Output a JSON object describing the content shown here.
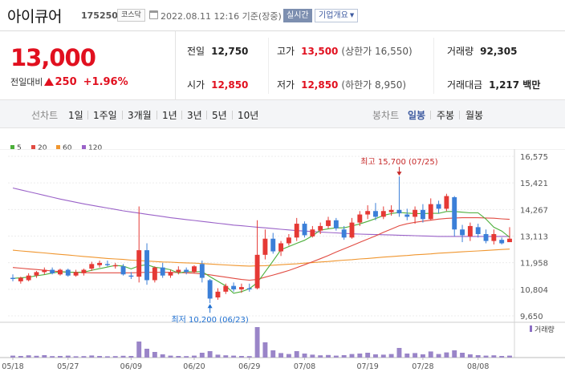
{
  "header": {
    "stock_name": "아이큐어",
    "stock_code": "175250",
    "market": "코스닥",
    "datetime": "2022.08.11 12:16 기준(장중)",
    "realtime_label": "실시간",
    "company_label": "기업개요",
    "calendar_icon": "calendar-icon",
    "caret_icon": "caret-down-icon"
  },
  "quote": {
    "price": "13,000",
    "change_label": "전일대비",
    "change": "250",
    "change_pct": "+1.96%",
    "up_color": "#e1101f",
    "prev_close_label": "전일",
    "prev_close": "12,750",
    "high_label": "고가",
    "high": "13,500",
    "upper_limit": "(상한가 16,550)",
    "volume_label": "거래량",
    "volume": "92,305",
    "open_label": "시가",
    "open": "12,850",
    "low_label": "저가",
    "low": "12,850",
    "lower_limit": "(하한가 8,950)",
    "amount_label": "거래대금",
    "amount": "1,217 백만"
  },
  "period": {
    "chart_label": "선차트",
    "chart_periods": [
      "1일",
      "1주일",
      "3개월",
      "1년",
      "3년",
      "5년",
      "10년"
    ],
    "candle_label": "봉차트",
    "candle_periods": [
      "일봉",
      "주봉",
      "월봉"
    ],
    "active_candle": "일봉"
  },
  "chart_data": {
    "type": "candlestick",
    "legend": [
      {
        "name": "5",
        "color": "#4caf3a"
      },
      {
        "name": "20",
        "color": "#e14b42"
      },
      {
        "name": "60",
        "color": "#f0962f"
      },
      {
        "name": "120",
        "color": "#9a62c8"
      }
    ],
    "up_color": "#e53935",
    "down_color": "#3b7fd8",
    "y_ticks": [
      "16,575",
      "15,421",
      "14,267",
      "13,113",
      "11,958",
      "10,804",
      "9,650"
    ],
    "ylim": [
      9650,
      16575
    ],
    "x_labels": [
      "05/18",
      "05/27",
      "06/09",
      "06/20",
      "06/29",
      "07/08",
      "07/19",
      "07/28",
      "08/08"
    ],
    "x_label_idx": [
      0,
      7,
      15,
      23,
      30,
      37,
      45,
      52,
      59
    ],
    "high_annotation": {
      "label": "최고 15,700 (07/25)",
      "index": 49,
      "value": 15700
    },
    "low_annotation": {
      "label": "최저 10,200 (06/23)",
      "index": 25,
      "value": 10200
    },
    "volume_label": "거래량",
    "candles": [
      {
        "o": 11300,
        "h": 11450,
        "l": 11150,
        "c": 11250,
        "v": 12
      },
      {
        "o": 11150,
        "h": 11350,
        "l": 11050,
        "c": 11300,
        "v": 10
      },
      {
        "o": 11200,
        "h": 11500,
        "l": 11150,
        "c": 11400,
        "v": 14
      },
      {
        "o": 11400,
        "h": 11600,
        "l": 11300,
        "c": 11550,
        "v": 11
      },
      {
        "o": 11550,
        "h": 11750,
        "l": 11450,
        "c": 11650,
        "v": 15
      },
      {
        "o": 11650,
        "h": 11750,
        "l": 11450,
        "c": 11500,
        "v": 9
      },
      {
        "o": 11450,
        "h": 11700,
        "l": 11400,
        "c": 11650,
        "v": 10
      },
      {
        "o": 11650,
        "h": 11700,
        "l": 11350,
        "c": 11400,
        "v": 12
      },
      {
        "o": 11400,
        "h": 11650,
        "l": 11350,
        "c": 11550,
        "v": 8
      },
      {
        "o": 11500,
        "h": 11700,
        "l": 11400,
        "c": 11650,
        "v": 9
      },
      {
        "o": 11700,
        "h": 12000,
        "l": 11600,
        "c": 11900,
        "v": 13
      },
      {
        "o": 11850,
        "h": 12050,
        "l": 11750,
        "c": 11950,
        "v": 10
      },
      {
        "o": 11900,
        "h": 12050,
        "l": 11800,
        "c": 11850,
        "v": 8
      },
      {
        "o": 11800,
        "h": 11950,
        "l": 11700,
        "c": 11850,
        "v": 9
      },
      {
        "o": 11800,
        "h": 11900,
        "l": 11400,
        "c": 11450,
        "v": 11
      },
      {
        "o": 11400,
        "h": 11550,
        "l": 11250,
        "c": 11350,
        "v": 10
      },
      {
        "o": 11350,
        "h": 14400,
        "l": 11100,
        "c": 12500,
        "v": 100
      },
      {
        "o": 12500,
        "h": 12800,
        "l": 11000,
        "c": 11200,
        "v": 55
      },
      {
        "o": 11200,
        "h": 11800,
        "l": 11100,
        "c": 11750,
        "v": 35
      },
      {
        "o": 11750,
        "h": 11950,
        "l": 11300,
        "c": 11400,
        "v": 20
      },
      {
        "o": 11400,
        "h": 11650,
        "l": 11300,
        "c": 11550,
        "v": 12
      },
      {
        "o": 11550,
        "h": 11800,
        "l": 11450,
        "c": 11650,
        "v": 10
      },
      {
        "o": 11650,
        "h": 11750,
        "l": 11450,
        "c": 11550,
        "v": 9
      },
      {
        "o": 11550,
        "h": 11850,
        "l": 11500,
        "c": 11800,
        "v": 12
      },
      {
        "o": 11900,
        "h": 12050,
        "l": 11100,
        "c": 11300,
        "v": 30
      },
      {
        "o": 11200,
        "h": 11250,
        "l": 10200,
        "c": 10400,
        "v": 40
      },
      {
        "o": 10450,
        "h": 10850,
        "l": 10350,
        "c": 10700,
        "v": 18
      },
      {
        "o": 10700,
        "h": 11050,
        "l": 10600,
        "c": 10950,
        "v": 14
      },
      {
        "o": 10950,
        "h": 11100,
        "l": 10700,
        "c": 10800,
        "v": 12
      },
      {
        "o": 10800,
        "h": 11050,
        "l": 10650,
        "c": 10900,
        "v": 10
      },
      {
        "o": 10850,
        "h": 11050,
        "l": 10700,
        "c": 10800,
        "v": 9
      },
      {
        "o": 10850,
        "h": 13800,
        "l": 10800,
        "c": 12300,
        "v": 190
      },
      {
        "o": 12300,
        "h": 13400,
        "l": 12100,
        "c": 13000,
        "v": 95
      },
      {
        "o": 13000,
        "h": 13250,
        "l": 12350,
        "c": 12450,
        "v": 45
      },
      {
        "o": 12450,
        "h": 12900,
        "l": 12250,
        "c": 12800,
        "v": 28
      },
      {
        "o": 12800,
        "h": 13200,
        "l": 12700,
        "c": 13050,
        "v": 22
      },
      {
        "o": 13050,
        "h": 13900,
        "l": 12900,
        "c": 13650,
        "v": 40
      },
      {
        "o": 13650,
        "h": 13750,
        "l": 13050,
        "c": 13150,
        "v": 25
      },
      {
        "o": 13100,
        "h": 13550,
        "l": 13050,
        "c": 13400,
        "v": 18
      },
      {
        "o": 13350,
        "h": 13700,
        "l": 13200,
        "c": 13550,
        "v": 14
      },
      {
        "o": 13550,
        "h": 13950,
        "l": 13450,
        "c": 13800,
        "v": 16
      },
      {
        "o": 13800,
        "h": 13900,
        "l": 13350,
        "c": 13450,
        "v": 12
      },
      {
        "o": 13400,
        "h": 13550,
        "l": 12950,
        "c": 13050,
        "v": 15
      },
      {
        "o": 13050,
        "h": 13900,
        "l": 13000,
        "c": 13700,
        "v": 22
      },
      {
        "o": 13700,
        "h": 14200,
        "l": 13550,
        "c": 14050,
        "v": 25
      },
      {
        "o": 14050,
        "h": 14450,
        "l": 13850,
        "c": 14200,
        "v": 30
      },
      {
        "o": 14200,
        "h": 14550,
        "l": 13800,
        "c": 13950,
        "v": 20
      },
      {
        "o": 13950,
        "h": 14400,
        "l": 13850,
        "c": 14200,
        "v": 18
      },
      {
        "o": 14150,
        "h": 14450,
        "l": 14000,
        "c": 14250,
        "v": 22
      },
      {
        "o": 14250,
        "h": 15700,
        "l": 13950,
        "c": 14100,
        "v": 60
      },
      {
        "o": 14050,
        "h": 14300,
        "l": 13800,
        "c": 13950,
        "v": 25
      },
      {
        "o": 13950,
        "h": 14400,
        "l": 13650,
        "c": 14250,
        "v": 28
      },
      {
        "o": 14250,
        "h": 14500,
        "l": 13700,
        "c": 13850,
        "v": 20
      },
      {
        "o": 13850,
        "h": 14750,
        "l": 13800,
        "c": 14500,
        "v": 38
      },
      {
        "o": 14500,
        "h": 14650,
        "l": 14100,
        "c": 14300,
        "v": 22
      },
      {
        "o": 14300,
        "h": 14950,
        "l": 14200,
        "c": 14850,
        "v": 32
      },
      {
        "o": 14800,
        "h": 14850,
        "l": 13100,
        "c": 13400,
        "v": 45
      },
      {
        "o": 13400,
        "h": 13600,
        "l": 12850,
        "c": 13150,
        "v": 30
      },
      {
        "o": 13100,
        "h": 13700,
        "l": 12900,
        "c": 13550,
        "v": 20
      },
      {
        "o": 13500,
        "h": 13650,
        "l": 13050,
        "c": 13200,
        "v": 15
      },
      {
        "o": 13200,
        "h": 13400,
        "l": 12800,
        "c": 12900,
        "v": 12
      },
      {
        "o": 12900,
        "h": 13400,
        "l": 12750,
        "c": 13200,
        "v": 14
      },
      {
        "o": 12950,
        "h": 13050,
        "l": 12750,
        "c": 12800,
        "v": 10
      },
      {
        "o": 12850,
        "h": 13500,
        "l": 12850,
        "c": 13000,
        "v": 12
      }
    ],
    "ma5": [
      11280,
      11300,
      11330,
      11390,
      11440,
      11510,
      11560,
      11550,
      11540,
      11550,
      11630,
      11700,
      11770,
      11840,
      11810,
      11690,
      11820,
      11870,
      11760,
      11720,
      11650,
      11510,
      11570,
      11560,
      11570,
      11350,
      11150,
      10950,
      10630,
      10700,
      10830,
      11090,
      11560,
      12030,
      12520,
      12660,
      12800,
      12930,
      13130,
      13370,
      13430,
      13470,
      13470,
      13550,
      13640,
      13750,
      13870,
      14010,
      14090,
      14140,
      14110,
      14090,
      14090,
      14100,
      14100,
      14180,
      14180,
      14150,
      14120,
      14120,
      13850,
      13500,
      13330,
      13060
    ],
    "ma20": [
      11750,
      11720,
      11690,
      11660,
      11630,
      11600,
      11570,
      11550,
      11540,
      11530,
      11520,
      11520,
      11520,
      11520,
      11520,
      11520,
      11530,
      11540,
      11540,
      11540,
      11540,
      11530,
      11520,
      11500,
      11470,
      11430,
      11380,
      11330,
      11280,
      11230,
      11200,
      11230,
      11330,
      11420,
      11520,
      11620,
      11740,
      11870,
      12000,
      12130,
      12270,
      12420,
      12560,
      12700,
      12840,
      12980,
      13120,
      13280,
      13420,
      13560,
      13650,
      13710,
      13760,
      13800,
      13850,
      13880,
      13900,
      13910,
      13910,
      13910,
      13900,
      13890,
      13860,
      13840
    ],
    "ma60": [
      12500,
      12470,
      12440,
      12410,
      12380,
      12350,
      12320,
      12290,
      12260,
      12230,
      12200,
      12170,
      12140,
      12120,
      12100,
      12070,
      12050,
      12030,
      12010,
      11990,
      11980,
      11960,
      11950,
      11940,
      11920,
      11900,
      11880,
      11860,
      11840,
      11820,
      11810,
      11820,
      11830,
      11850,
      11870,
      11890,
      11910,
      11940,
      11960,
      11990,
      12010,
      12040,
      12070,
      12090,
      12120,
      12140,
      12170,
      12200,
      12220,
      12250,
      12270,
      12300,
      12320,
      12340,
      12370,
      12390,
      12410,
      12430,
      12450,
      12470,
      12490,
      12510,
      12530,
      12550
    ],
    "ma120": [
      15200,
      15120,
      15040,
      14960,
      14880,
      14800,
      14720,
      14650,
      14580,
      14510,
      14450,
      14390,
      14330,
      14270,
      14210,
      14160,
      14110,
      14060,
      14010,
      13960,
      13910,
      13870,
      13830,
      13790,
      13750,
      13710,
      13670,
      13630,
      13590,
      13560,
      13530,
      13500,
      13470,
      13440,
      13410,
      13380,
      13350,
      13330,
      13310,
      13290,
      13270,
      13250,
      13230,
      13210,
      13200,
      13190,
      13180,
      13170,
      13160,
      13150,
      13140,
      13130,
      13120,
      13110,
      13100,
      13100,
      13100,
      13100,
      13100,
      13100,
      13100,
      13100,
      13100,
      13100
    ]
  }
}
